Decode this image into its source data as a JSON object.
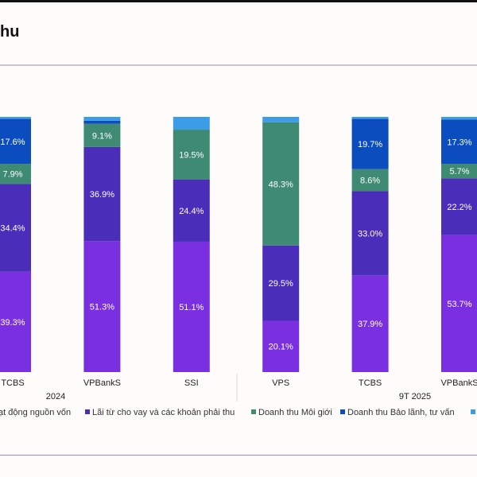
{
  "title": "hu",
  "chart_data": {
    "type": "bar",
    "stacked": true,
    "percent": true,
    "categories": [
      "TCBS",
      "VPBankS",
      "SSI",
      "VPS",
      "TCBS",
      "VPBankS"
    ],
    "groups": [
      {
        "label": "2024",
        "categories": [
          0,
          1,
          2
        ]
      },
      {
        "label": "9T 2025",
        "categories": [
          3,
          4,
          5
        ]
      }
    ],
    "series": [
      {
        "name": "ạt động nguồn vốn",
        "color": "#7a2fe0",
        "values": [
          39.3,
          51.3,
          51.1,
          20.1,
          37.9,
          53.7
        ],
        "labels": [
          "39.3%",
          "51.3%",
          "51.1%",
          "20.1%",
          "37.9%",
          "53.7%"
        ]
      },
      {
        "name": "Lãi từ cho vay và các khoản phải thu",
        "color": "#4a2db8",
        "values": [
          34.4,
          36.9,
          24.4,
          29.5,
          33.0,
          22.2
        ],
        "labels": [
          "34.4%",
          "36.9%",
          "24.4%",
          "29.5%",
          "33.0%",
          "22.2%"
        ]
      },
      {
        "name": "Doanh thu Môi giới",
        "color": "#3f8a72",
        "values": [
          7.9,
          9.1,
          19.5,
          48.3,
          8.6,
          5.7
        ],
        "labels": [
          "7.9%",
          "9.1%",
          "19.5%",
          "48.3%",
          "8.6%",
          "5.7%"
        ]
      },
      {
        "name": "Doanh thu Bảo lãnh, tư vấn",
        "color": "#0b4dbf",
        "values": [
          17.6,
          1.2,
          0,
          0,
          19.7,
          17.3
        ],
        "labels": [
          "17.6%",
          "",
          "",
          "",
          "19.7%",
          "17.3%"
        ]
      },
      {
        "name": "",
        "color": "#3d9ce8",
        "values": [
          0.8,
          1.5,
          5.0,
          2.1,
          0.8,
          1.1
        ],
        "labels": [
          "",
          "",
          "",
          "",
          "",
          ""
        ]
      }
    ],
    "ylim": [
      0,
      100
    ],
    "grid": false,
    "legend": "bottom"
  }
}
